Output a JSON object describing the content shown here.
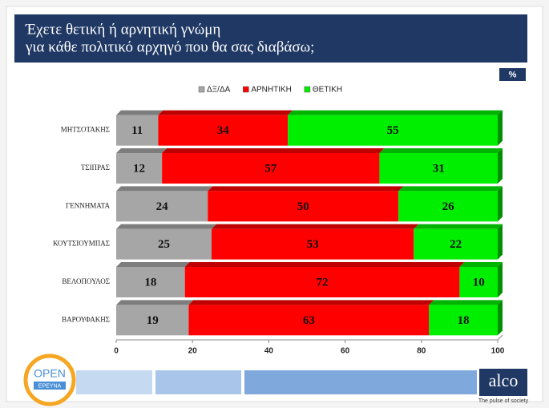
{
  "chart_data": {
    "type": "stacked-barh",
    "title": "Έχετε θετική ή αρνητική γνώμη",
    "subtitle": "για κάθε πολιτικό αρχηγό που θα σας διαβάσω;",
    "unit": "%",
    "categories": [
      "ΜΗΤΣΟΤΑΚΗΣ",
      "ΤΣΙΠΡΑΣ",
      "ΓΕΝΝΗΜΑΤΑ",
      "ΚΟΥΤΣΙΟΥΜΠΑΣ",
      "ΒΕΛΟΠΟΥΛΟΣ",
      "ΒΑΡΟΥΦΑΚΗΣ"
    ],
    "series": [
      {
        "name": "ΔΞ/ΔΑ",
        "color": "#a6a6a6",
        "values": [
          11,
          12,
          24,
          25,
          18,
          19
        ]
      },
      {
        "name": "ΑΡΝΗΤΙΚΗ",
        "color": "#ff0000",
        "values": [
          34,
          57,
          50,
          53,
          72,
          63
        ]
      },
      {
        "name": "ΘΕΤΙΚΗ",
        "color": "#00ee00",
        "values": [
          55,
          31,
          26,
          22,
          10,
          18
        ]
      }
    ],
    "xlim": [
      0,
      100
    ],
    "xticks": [
      0,
      20,
      40,
      60,
      80,
      100
    ]
  },
  "footer": {
    "brand_left": "OPEN",
    "brand_left_sub": "ΕΡΕΥΝΑ",
    "brand_right": "alco",
    "brand_right_sub": "The pulse of society"
  }
}
